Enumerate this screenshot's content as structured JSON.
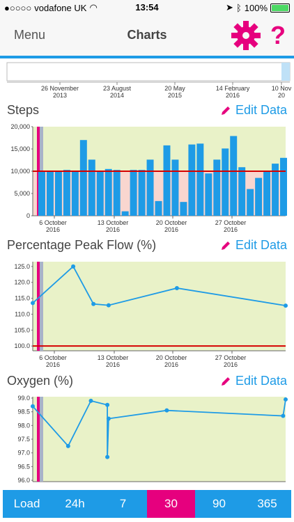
{
  "status": {
    "carrier": "vodafone UK",
    "time": "13:54",
    "battery": "100%"
  },
  "nav": {
    "menu": "Menu",
    "title": "Charts",
    "help": "?"
  },
  "timeline": {
    "labels": [
      [
        "26 November",
        "2013"
      ],
      [
        "23 August",
        "2014"
      ],
      [
        "20 May",
        "2015"
      ],
      [
        "14 February",
        "2016"
      ],
      [
        "10 Nov",
        "20"
      ]
    ]
  },
  "sections": {
    "steps": {
      "title": "Steps",
      "edit": "Edit Data"
    },
    "peakflow": {
      "title": "Percentage Peak Flow (%)",
      "edit": "Edit Data"
    },
    "oxygen": {
      "title": "Oxygen (%)",
      "edit": "Edit Data"
    }
  },
  "xlabels": [
    [
      "6 October",
      "2016"
    ],
    [
      "13 October",
      "2016"
    ],
    [
      "20 October",
      "2016"
    ],
    [
      "27 October",
      "2016"
    ]
  ],
  "chart_data": [
    {
      "type": "bar",
      "title": "Steps",
      "yticks": [
        "0",
        "5,000",
        "10,000",
        "15,000",
        "20,000"
      ],
      "ylim": [
        0,
        20000
      ],
      "target": 10000,
      "values": [
        10100,
        10000,
        10100,
        10300,
        10000,
        17000,
        12600,
        9900,
        10500,
        10300,
        1000,
        10300,
        10300,
        12600,
        3300,
        15800,
        12600,
        3100,
        16000,
        16200,
        9500,
        12600,
        15100,
        17900,
        10900,
        6000,
        8500,
        9900,
        11700,
        13000
      ],
      "colors": {
        "bar": "#1e9be6",
        "target": "#d50000",
        "bg": "#e9f2c8",
        "shade": "#f9d6cf"
      }
    },
    {
      "type": "line",
      "title": "Percentage Peak Flow (%)",
      "yticks": [
        "100.0",
        "105.0",
        "110.0",
        "115.0",
        "120.0",
        "125.0"
      ],
      "ylim": [
        98.5,
        126.5
      ],
      "target": 100,
      "points": [
        [
          0,
          113.5
        ],
        [
          0.16,
          125
        ],
        [
          0.24,
          113.2
        ],
        [
          0.3,
          112.8
        ],
        [
          0.57,
          118.2
        ],
        [
          1.0,
          112.7
        ]
      ],
      "colors": {
        "line": "#1e9be6",
        "target": "#d50000",
        "bg": "#e9f2c8"
      }
    },
    {
      "type": "line",
      "title": "Oxygen (%)",
      "yticks": [
        "96.0",
        "96.5",
        "97.0",
        "97.5",
        "98.0",
        "98.5",
        "99.0"
      ],
      "ylim": [
        95.95,
        99.05
      ],
      "points": [
        [
          0,
          98.7
        ],
        [
          0.14,
          97.25
        ],
        [
          0.23,
          98.9
        ],
        [
          0.295,
          98.75
        ],
        [
          0.295,
          96.85
        ],
        [
          0.3,
          98.25
        ],
        [
          0.53,
          98.55
        ],
        [
          0.99,
          98.35
        ],
        [
          1.0,
          98.95
        ]
      ],
      "colors": {
        "line": "#1e9be6",
        "bg": "#e9f2c8"
      }
    }
  ],
  "range_buttons": [
    {
      "label": "Load",
      "active": false
    },
    {
      "label": "24h",
      "active": false
    },
    {
      "label": "7",
      "active": false
    },
    {
      "label": "30",
      "active": true
    },
    {
      "label": "90",
      "active": false
    },
    {
      "label": "365",
      "active": false
    }
  ]
}
